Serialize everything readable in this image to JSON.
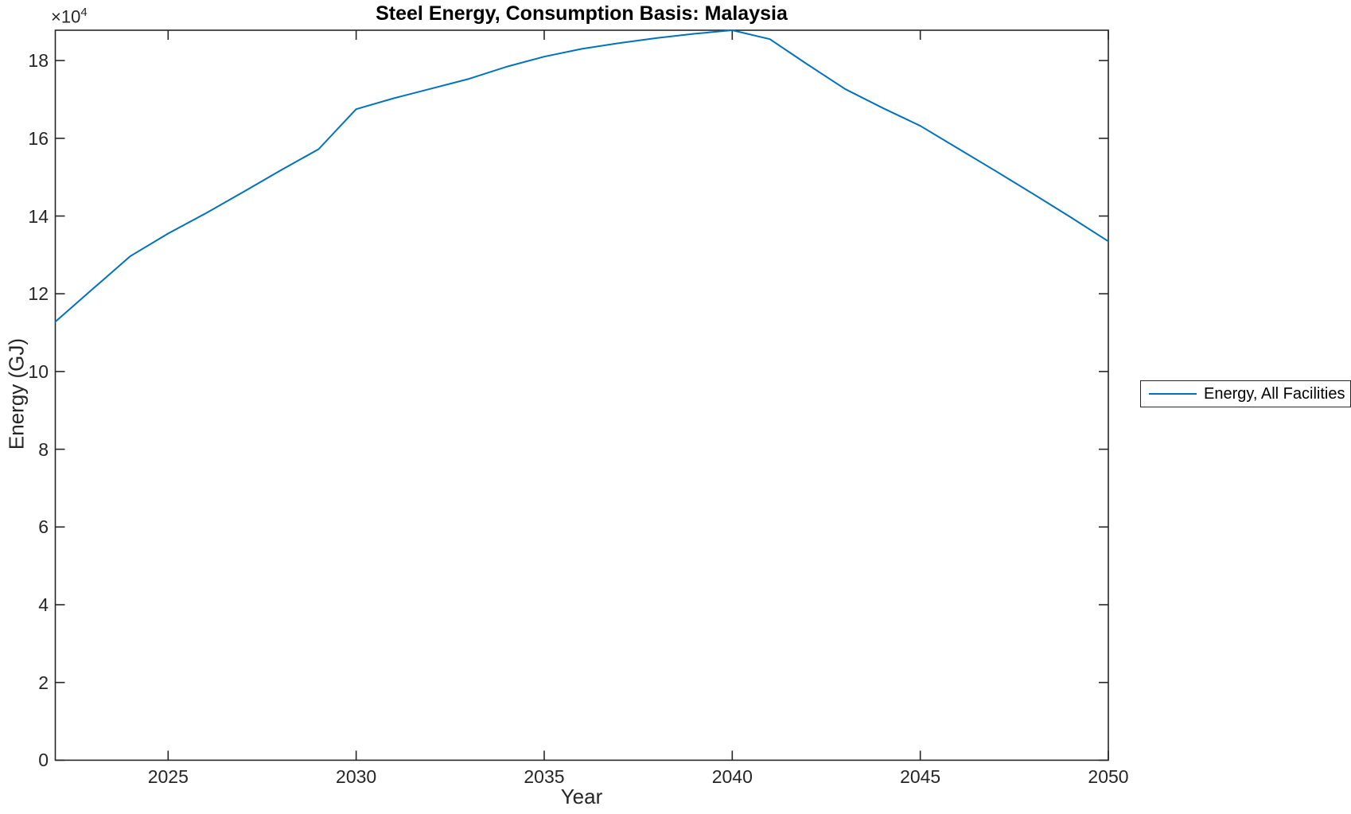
{
  "figure": {
    "title": "Steel Energy, Consumption Basis: Malaysia",
    "y_offset_label": {
      "base": "×10",
      "exponent": "4"
    },
    "legend": {
      "entries": [
        {
          "label": "Energy, All Facilities",
          "color": "#0072BD"
        }
      ],
      "position": "outside-right"
    },
    "colors": {
      "line": "#0072BD",
      "axes": "#262626",
      "background": "#ffffff"
    }
  },
  "chart_data": {
    "type": "line",
    "title": "Steel Energy, Consumption Basis: Malaysia",
    "xlabel": "Year",
    "ylabel": "Energy (GJ)",
    "y_scale_note": "y tick labels are in units of 10^4 GJ",
    "xlim": [
      2022,
      2050
    ],
    "ylim": [
      0,
      187800
    ],
    "grid": false,
    "box": true,
    "tick_direction": "in",
    "x_ticks": [
      2025,
      2030,
      2035,
      2040,
      2045,
      2050
    ],
    "x_tick_labels": [
      "2025",
      "2030",
      "2035",
      "2040",
      "2045",
      "2050"
    ],
    "y_ticks": [
      0,
      20000,
      40000,
      60000,
      80000,
      100000,
      120000,
      140000,
      160000,
      180000
    ],
    "y_tick_labels": [
      "0",
      "2",
      "4",
      "6",
      "8",
      "10",
      "12",
      "14",
      "16",
      "18"
    ],
    "x": [
      2022,
      2023,
      2024,
      2025,
      2026,
      2027,
      2028,
      2029,
      2030,
      2031,
      2032,
      2033,
      2034,
      2035,
      2036,
      2037,
      2038,
      2039,
      2040,
      2041,
      2042,
      2043,
      2044,
      2045,
      2046,
      2047,
      2048,
      2049,
      2050
    ],
    "series": [
      {
        "name": "Energy, All Facilities",
        "color": "#0072BD",
        "values": [
          112800,
          121300,
          129700,
          135500,
          140700,
          146200,
          151800,
          157200,
          167500,
          170300,
          172800,
          175300,
          178400,
          181000,
          183000,
          184500,
          185800,
          186900,
          187800,
          185500,
          179000,
          172700,
          167800,
          163200,
          157400,
          151600,
          145700,
          139700,
          133500
        ]
      }
    ]
  }
}
